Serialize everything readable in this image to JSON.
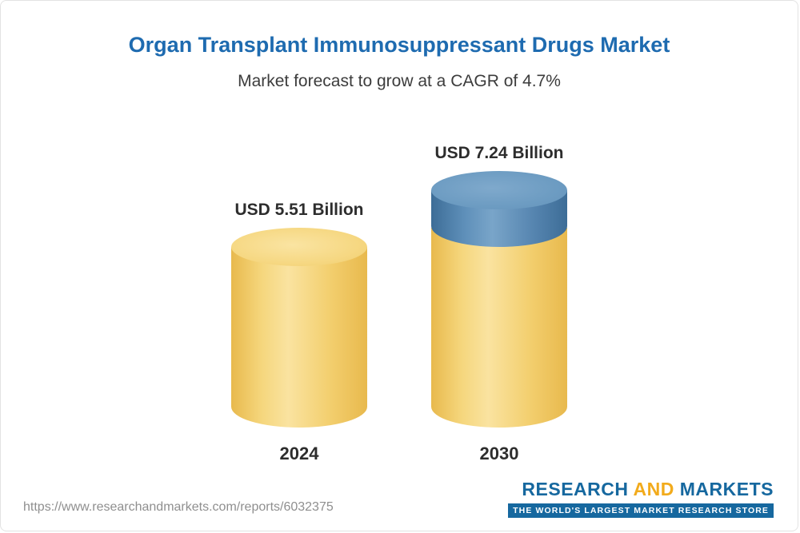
{
  "header": {
    "title": "Organ Transplant Immunosuppressant Drugs Market",
    "subtitle": "Market forecast to grow at a CAGR of 4.7%"
  },
  "chart_data": {
    "type": "bar",
    "title": "Organ Transplant Immunosuppressant Drugs Market",
    "subtitle": "Market forecast to grow at a CAGR of 4.7%",
    "categories": [
      "2024",
      "2030"
    ],
    "values": [
      5.51,
      7.24
    ],
    "value_labels": [
      "USD 5.51 Billion",
      "USD 7.24 Billion"
    ],
    "unit": "USD Billion",
    "cagr": "4.7%",
    "legend_position": "none",
    "grid": false,
    "colors": {
      "bar_base": "#F2CE6E",
      "bar_growth_segment": "#5A8CB8",
      "title_text": "#1E6BB0",
      "label_text": "#2D2D2D"
    },
    "notes": "2030 bar shows base value in yellow with growth segment above in blue"
  },
  "footer": {
    "url": "https://www.researchandmarkets.com/reports/6032375",
    "logo": {
      "word_research": "RESEARCH",
      "word_and": "AND",
      "word_markets": "MARKETS",
      "tagline": "THE WORLD'S LARGEST MARKET RESEARCH STORE"
    }
  }
}
